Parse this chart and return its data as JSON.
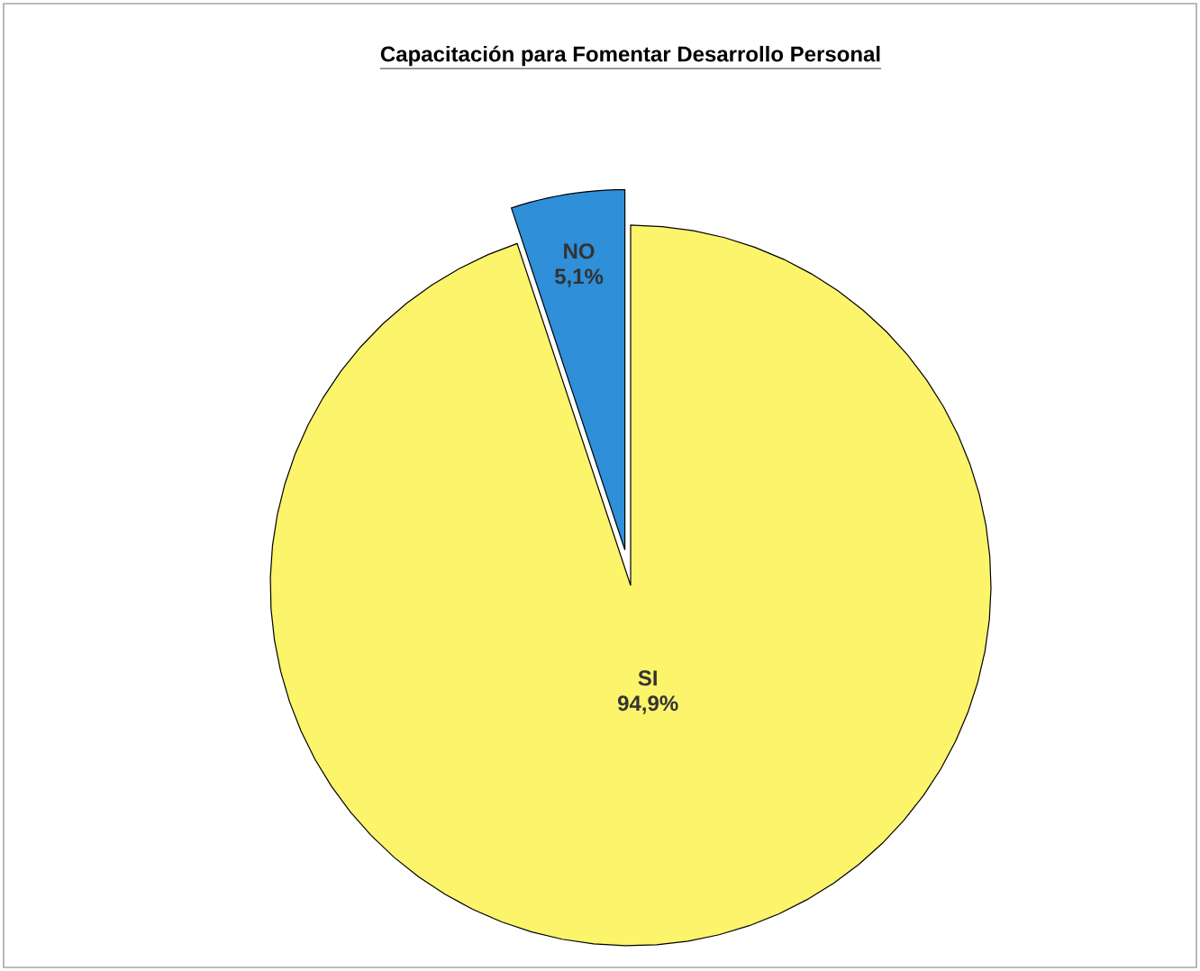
{
  "chart_data": {
    "type": "pie",
    "title": "Capacitación para Fomentar Desarrollo Personal",
    "categories": [
      "SI",
      "NO"
    ],
    "values": [
      94.9,
      5.1
    ],
    "value_labels": [
      "94,9%",
      "5,1%"
    ],
    "colors": [
      "#fcf46a",
      "#2f8fd8"
    ]
  }
}
